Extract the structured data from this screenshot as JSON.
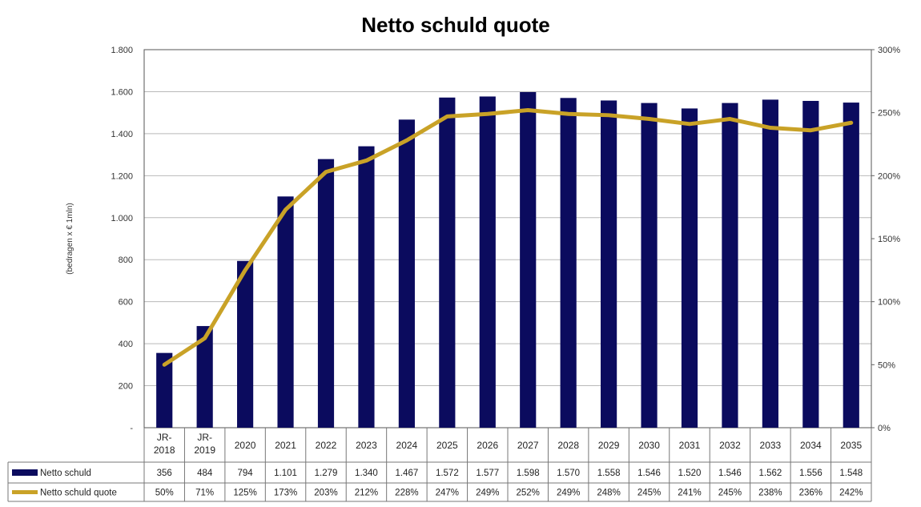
{
  "chart_data": {
    "type": "bar+line",
    "title": "Netto schuld quote",
    "ylabel": "(bedragen x € 1mln)",
    "categories": [
      "JR-2018",
      "JR-2019",
      "2020",
      "2021",
      "2022",
      "2023",
      "2024",
      "2025",
      "2026",
      "2027",
      "2028",
      "2029",
      "2030",
      "2031",
      "2032",
      "2033",
      "2034",
      "2035"
    ],
    "category_lines": [
      [
        "JR-",
        "2018"
      ],
      [
        "JR-",
        "2019"
      ],
      [
        "2020"
      ],
      [
        "2021"
      ],
      [
        "2022"
      ],
      [
        "2023"
      ],
      [
        "2024"
      ],
      [
        "2025"
      ],
      [
        "2026"
      ],
      [
        "2027"
      ],
      [
        "2028"
      ],
      [
        "2029"
      ],
      [
        "2030"
      ],
      [
        "2031"
      ],
      [
        "2032"
      ],
      [
        "2033"
      ],
      [
        "2034"
      ],
      [
        "2035"
      ]
    ],
    "ylim": [
      0,
      1800
    ],
    "y_ticks": [
      0,
      200,
      400,
      600,
      800,
      1000,
      1200,
      1400,
      1600,
      1800
    ],
    "y_tick_labels": [
      "-",
      "200",
      "400",
      "600",
      "800",
      "1.000",
      "1.200",
      "1.400",
      "1.600",
      "1.800"
    ],
    "y2lim": [
      0,
      300
    ],
    "y2_ticks": [
      0,
      50,
      100,
      150,
      200,
      250,
      300
    ],
    "y2_tick_labels": [
      "0%",
      "50%",
      "100%",
      "150%",
      "200%",
      "250%",
      "300%"
    ],
    "grid": true,
    "legend": "data-table",
    "series": [
      {
        "name": "Netto schuld",
        "type": "bar",
        "axis": "left",
        "color": "#0b0b5e",
        "values": [
          356,
          484,
          794,
          1101,
          1279,
          1340,
          1467,
          1572,
          1577,
          1598,
          1570,
          1558,
          1546,
          1520,
          1546,
          1562,
          1556,
          1548
        ],
        "labels": [
          "356",
          "484",
          "794",
          "1.101",
          "1.279",
          "1.340",
          "1.467",
          "1.572",
          "1.577",
          "1.598",
          "1.570",
          "1.558",
          "1.546",
          "1.520",
          "1.546",
          "1.562",
          "1.556",
          "1.548"
        ]
      },
      {
        "name": "Netto schuld quote",
        "type": "line",
        "axis": "right",
        "color": "#c9a227",
        "values": [
          50,
          71,
          125,
          173,
          203,
          212,
          228,
          247,
          249,
          252,
          249,
          248,
          245,
          241,
          245,
          238,
          236,
          242
        ],
        "labels": [
          "50%",
          "71%",
          "125%",
          "173%",
          "203%",
          "212%",
          "228%",
          "247%",
          "249%",
          "252%",
          "249%",
          "248%",
          "245%",
          "241%",
          "245%",
          "238%",
          "236%",
          "242%"
        ]
      }
    ]
  }
}
